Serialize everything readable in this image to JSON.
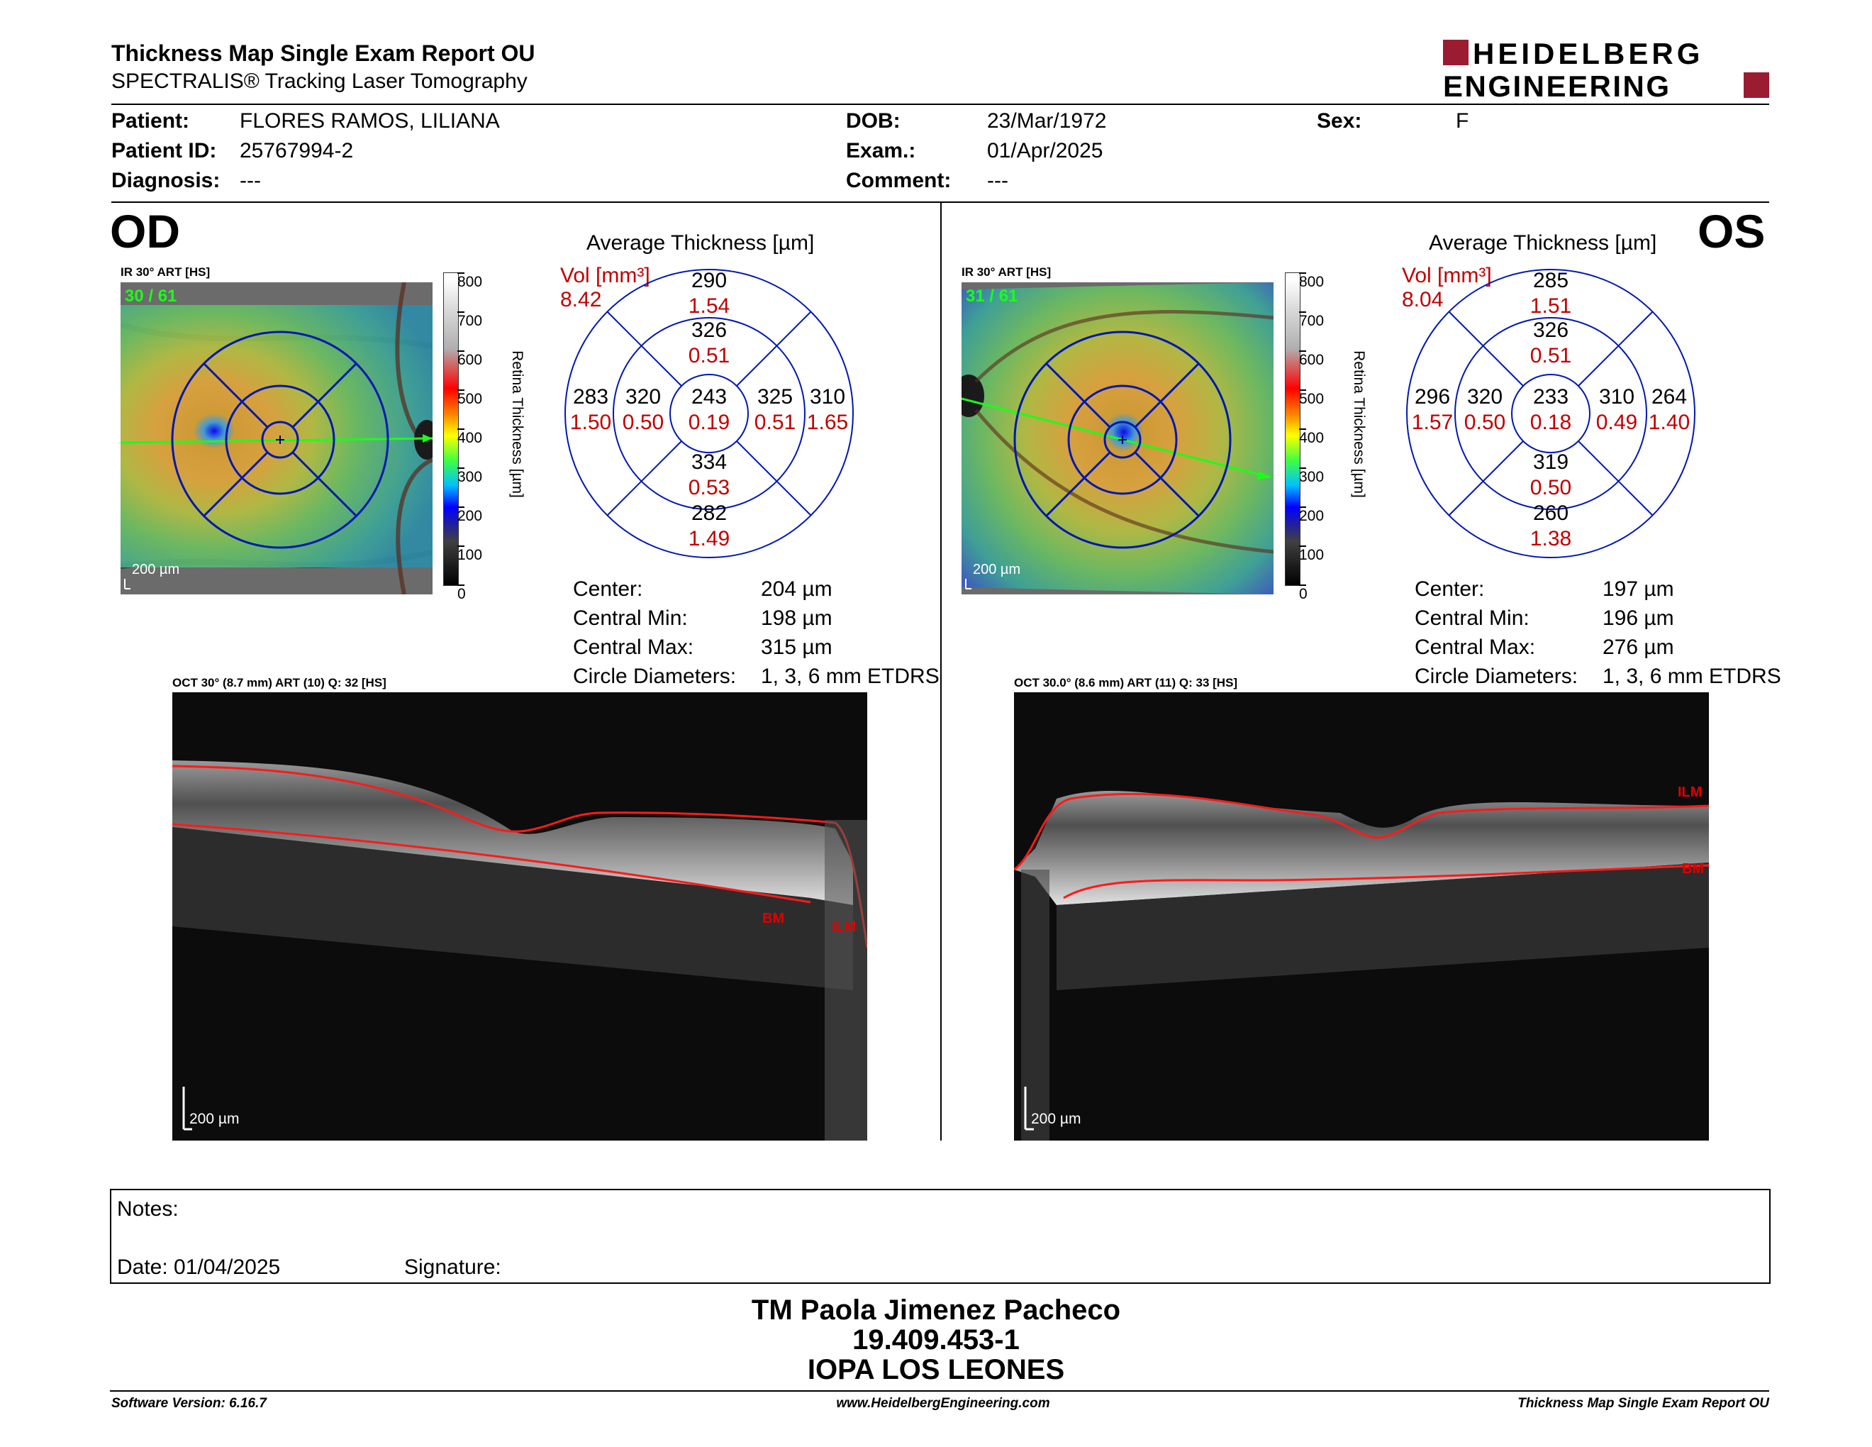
{
  "header": {
    "title": "Thickness Map Single Exam Report OU",
    "subtitle": "SPECTRALIS® Tracking Laser Tomography",
    "brand_line1": "HEIDELBERG",
    "brand_line2": "ENGINEERING",
    "brand_color": "#9b1b30"
  },
  "patient": {
    "patient_label": "Patient:",
    "patient_value": "FLORES RAMOS, LILIANA",
    "id_label": "Patient ID:",
    "id_value": "25767994-2",
    "diagnosis_label": "Diagnosis:",
    "diagnosis_value": "---",
    "dob_label": "DOB:",
    "dob_value": "23/Mar/1972",
    "exam_label": "Exam.:",
    "exam_value": "01/Apr/2025",
    "comment_label": "Comment:",
    "comment_value": "---",
    "sex_label": "Sex:",
    "sex_value": "F"
  },
  "scale": {
    "ticks": [
      "800",
      "700",
      "600",
      "500",
      "400",
      "300",
      "200",
      "100",
      "0"
    ],
    "label": "Retina  Thickness [µm]"
  },
  "od": {
    "eye": "OD",
    "ir_label": "IR 30° ART [HS]",
    "ir_quality": "30 / 61",
    "ir_scalebar": "200 µm",
    "avg_title": "Average Thickness [µm]",
    "vol_label": "Vol [mm³]",
    "vol_total": "8.42",
    "grid": {
      "center": [
        "243",
        "0.19"
      ],
      "inner_sup": [
        "326",
        "0.51"
      ],
      "inner_inf": [
        "334",
        "0.53"
      ],
      "inner_nas": [
        "325",
        "0.51"
      ],
      "inner_tmp": [
        "320",
        "0.50"
      ],
      "outer_sup": [
        "290",
        "1.54"
      ],
      "outer_inf": [
        "282",
        "1.49"
      ],
      "outer_nas": [
        "310",
        "1.65"
      ],
      "outer_tmp": [
        "283",
        "1.50"
      ]
    },
    "stats": {
      "center_label": "Center:",
      "center_value": "204 µm",
      "min_label": "Central Min:",
      "min_value": "198 µm",
      "max_label": "Central Max:",
      "max_value": "315 µm",
      "diam_label": "Circle Diameters:",
      "diam_value": "1, 3, 6 mm ETDRS"
    },
    "oct_label": "OCT 30° (8.7 mm) ART (10) Q: 32 [HS]",
    "oct_scalebar": "200 µm",
    "ilm": "ILM",
    "bm": "BM"
  },
  "os": {
    "eye": "OS",
    "ir_label": "IR 30° ART [HS]",
    "ir_quality": "31 / 61",
    "ir_scalebar": "200 µm",
    "avg_title": "Average Thickness [µm]",
    "vol_label": "Vol [mm³]",
    "vol_total": "8.04",
    "grid": {
      "center": [
        "233",
        "0.18"
      ],
      "inner_sup": [
        "326",
        "0.51"
      ],
      "inner_inf": [
        "319",
        "0.50"
      ],
      "inner_nas": [
        "320",
        "0.50"
      ],
      "inner_tmp": [
        "310",
        "0.49"
      ],
      "outer_sup": [
        "285",
        "1.51"
      ],
      "outer_inf": [
        "260",
        "1.38"
      ],
      "outer_nas": [
        "296",
        "1.57"
      ],
      "outer_tmp": [
        "264",
        "1.40"
      ]
    },
    "stats": {
      "center_label": "Center:",
      "center_value": "197 µm",
      "min_label": "Central Min:",
      "min_value": "196 µm",
      "max_label": "Central Max:",
      "max_value": "276 µm",
      "diam_label": "Circle Diameters:",
      "diam_value": "1, 3, 6 mm ETDRS"
    },
    "oct_label": "OCT 30.0° (8.6 mm) ART (11) Q: 33 [HS]",
    "oct_scalebar": "200 µm",
    "ilm": "ILM",
    "bm": "BM"
  },
  "notes": {
    "notes_label": "Notes:",
    "date_label": "Date: 01/04/2025",
    "signature_label": "Signature:"
  },
  "signature_block": {
    "name": "TM Paola Jimenez Pacheco",
    "rut": "19.409.453-1",
    "institution": "IOPA LOS LEONES"
  },
  "footer": {
    "software": "Software Version: 6.16.7",
    "website": "www.HeidelbergEngineering.com",
    "report": "Thickness Map Single Exam Report OU"
  }
}
